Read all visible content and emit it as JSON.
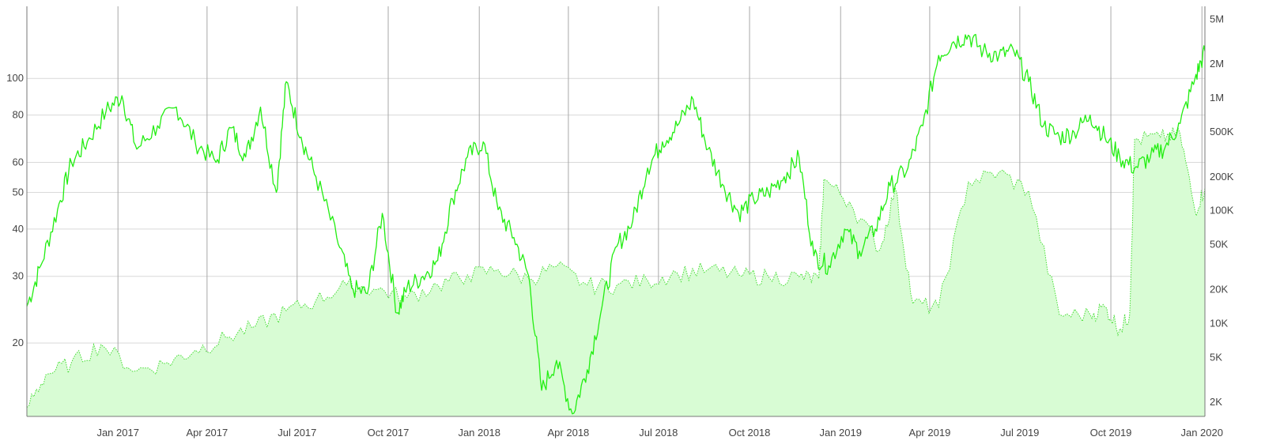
{
  "chart_data": {
    "type": "line",
    "title": "",
    "x_range": [
      "2016-10-01",
      "2020-01-04"
    ],
    "x_ticks": [
      {
        "date": "2017-01-01",
        "label": "Jan 2017"
      },
      {
        "date": "2017-04-01",
        "label": "Apr 2017"
      },
      {
        "date": "2017-07-01",
        "label": "Jul 2017"
      },
      {
        "date": "2017-10-01",
        "label": "Oct 2017"
      },
      {
        "date": "2018-01-01",
        "label": "Jan 2018"
      },
      {
        "date": "2018-04-01",
        "label": "Apr 2018"
      },
      {
        "date": "2018-07-01",
        "label": "Jul 2018"
      },
      {
        "date": "2018-10-01",
        "label": "Oct 2018"
      },
      {
        "date": "2019-01-01",
        "label": "Jan 2019"
      },
      {
        "date": "2019-04-01",
        "label": "Apr 2019"
      },
      {
        "date": "2019-07-01",
        "label": "Jul 2019"
      },
      {
        "date": "2019-10-01",
        "label": "Oct 2019"
      },
      {
        "date": "2020-01-01",
        "label": "Jan 2020"
      }
    ],
    "y_left": {
      "scale": "log",
      "range": [
        12.8,
        155
      ],
      "ticks": [
        {
          "value": 20,
          "label": "20"
        },
        {
          "value": 30,
          "label": "30"
        },
        {
          "value": 40,
          "label": "40"
        },
        {
          "value": 50,
          "label": "50"
        },
        {
          "value": 60,
          "label": "60"
        },
        {
          "value": 80,
          "label": "80"
        },
        {
          "value": 100,
          "label": "100"
        }
      ]
    },
    "y_right": {
      "scale": "log",
      "range": [
        1500,
        6500000
      ],
      "ticks": [
        {
          "value": 2000,
          "label": "2K"
        },
        {
          "value": 5000,
          "label": "5K"
        },
        {
          "value": 10000,
          "label": "10K"
        },
        {
          "value": 20000,
          "label": "20K"
        },
        {
          "value": 50000,
          "label": "50K"
        },
        {
          "value": 100000,
          "label": "100K"
        },
        {
          "value": 200000,
          "label": "200K"
        },
        {
          "value": 500000,
          "label": "500K"
        },
        {
          "value": 1000000,
          "label": "1M"
        },
        {
          "value": 2000000,
          "label": "2M"
        },
        {
          "value": 5000000,
          "label": "5M"
        }
      ]
    },
    "grid": true,
    "series": [
      {
        "axis": "left",
        "style": "solid-line",
        "color": "#22ee11",
        "points": [
          [
            "2016-10-01",
            25
          ],
          [
            "2016-10-15",
            32
          ],
          [
            "2016-11-01",
            45
          ],
          [
            "2016-11-15",
            60
          ],
          [
            "2016-12-01",
            68
          ],
          [
            "2016-12-20",
            82
          ],
          [
            "2017-01-05",
            90
          ],
          [
            "2017-01-20",
            65
          ],
          [
            "2017-02-10",
            75
          ],
          [
            "2017-03-01",
            84
          ],
          [
            "2017-03-20",
            68
          ],
          [
            "2017-04-10",
            60
          ],
          [
            "2017-04-25",
            74
          ],
          [
            "2017-05-10",
            62
          ],
          [
            "2017-05-25",
            84
          ],
          [
            "2017-06-10",
            50
          ],
          [
            "2017-06-20",
            98
          ],
          [
            "2017-07-05",
            70
          ],
          [
            "2017-07-20",
            55
          ],
          [
            "2017-08-10",
            38
          ],
          [
            "2017-08-25",
            28
          ],
          [
            "2017-09-10",
            27
          ],
          [
            "2017-09-25",
            44
          ],
          [
            "2017-10-10",
            24
          ],
          [
            "2017-10-20",
            28
          ],
          [
            "2017-11-05",
            30
          ],
          [
            "2017-11-20",
            33
          ],
          [
            "2017-12-05",
            48
          ],
          [
            "2017-12-20",
            62
          ],
          [
            "2018-01-05",
            68
          ],
          [
            "2018-01-20",
            45
          ],
          [
            "2018-02-05",
            38
          ],
          [
            "2018-02-20",
            30
          ],
          [
            "2018-03-05",
            15
          ],
          [
            "2018-03-20",
            18
          ],
          [
            "2018-04-05",
            13
          ],
          [
            "2018-04-20",
            17
          ],
          [
            "2018-05-05",
            25
          ],
          [
            "2018-05-20",
            36
          ],
          [
            "2018-06-05",
            42
          ],
          [
            "2018-06-20",
            58
          ],
          [
            "2018-07-05",
            68
          ],
          [
            "2018-07-20",
            75
          ],
          [
            "2018-08-05",
            88
          ],
          [
            "2018-08-20",
            65
          ],
          [
            "2018-09-05",
            52
          ],
          [
            "2018-09-20",
            44
          ],
          [
            "2018-10-05",
            48
          ],
          [
            "2018-10-20",
            50
          ],
          [
            "2018-11-05",
            55
          ],
          [
            "2018-11-20",
            62
          ],
          [
            "2018-12-05",
            34
          ],
          [
            "2018-12-20",
            32
          ],
          [
            "2019-01-05",
            40
          ],
          [
            "2019-01-20",
            35
          ],
          [
            "2019-02-05",
            40
          ],
          [
            "2019-02-20",
            52
          ],
          [
            "2019-03-10",
            58
          ],
          [
            "2019-03-25",
            75
          ],
          [
            "2019-04-10",
            115
          ],
          [
            "2019-04-25",
            125
          ],
          [
            "2019-05-10",
            130
          ],
          [
            "2019-05-25",
            118
          ],
          [
            "2019-06-10",
            115
          ],
          [
            "2019-06-25",
            118
          ],
          [
            "2019-07-10",
            98
          ],
          [
            "2019-07-25",
            75
          ],
          [
            "2019-08-10",
            70
          ],
          [
            "2019-08-25",
            72
          ],
          [
            "2019-09-10",
            80
          ],
          [
            "2019-09-25",
            70
          ],
          [
            "2019-10-10",
            62
          ],
          [
            "2019-10-25",
            58
          ],
          [
            "2019-11-10",
            62
          ],
          [
            "2019-11-25",
            66
          ],
          [
            "2019-12-10",
            76
          ],
          [
            "2019-12-25",
            100
          ],
          [
            "2020-01-04",
            118
          ]
        ]
      },
      {
        "axis": "right",
        "style": "dotted-line-area",
        "color": "#44dd33",
        "fill": "#d8fcd4",
        "points": [
          [
            "2016-10-01",
            1800
          ],
          [
            "2016-10-20",
            3500
          ],
          [
            "2016-11-15",
            4500
          ],
          [
            "2016-12-15",
            6500
          ],
          [
            "2017-01-20",
            3800
          ],
          [
            "2017-02-20",
            4500
          ],
          [
            "2017-03-20",
            5800
          ],
          [
            "2017-04-20",
            7500
          ],
          [
            "2017-05-20",
            9500
          ],
          [
            "2017-06-20",
            13000
          ],
          [
            "2017-07-20",
            16000
          ],
          [
            "2017-08-20",
            22000
          ],
          [
            "2017-09-20",
            20000
          ],
          [
            "2017-10-20",
            17000
          ],
          [
            "2017-11-20",
            22000
          ],
          [
            "2017-12-20",
            27000
          ],
          [
            "2018-01-20",
            30000
          ],
          [
            "2018-02-20",
            25000
          ],
          [
            "2018-03-20",
            32000
          ],
          [
            "2018-04-20",
            22000
          ],
          [
            "2018-05-20",
            22000
          ],
          [
            "2018-06-20",
            24000
          ],
          [
            "2018-07-20",
            28000
          ],
          [
            "2018-08-20",
            30000
          ],
          [
            "2018-09-20",
            27000
          ],
          [
            "2018-10-20",
            26000
          ],
          [
            "2018-11-20",
            26000
          ],
          [
            "2018-12-10",
            25000
          ],
          [
            "2018-12-15",
            190000
          ],
          [
            "2019-01-10",
            120000
          ],
          [
            "2019-02-10",
            45000
          ],
          [
            "2019-02-25",
            160000
          ],
          [
            "2019-03-15",
            15000
          ],
          [
            "2019-04-10",
            14000
          ],
          [
            "2019-05-10",
            180000
          ],
          [
            "2019-06-10",
            220000
          ],
          [
            "2019-07-10",
            150000
          ],
          [
            "2019-08-10",
            12000
          ],
          [
            "2019-09-10",
            12000
          ],
          [
            "2019-09-25",
            14000
          ],
          [
            "2019-10-10",
            9000
          ],
          [
            "2019-10-20",
            12000
          ],
          [
            "2019-10-25",
            430000
          ],
          [
            "2019-11-20",
            450000
          ],
          [
            "2019-12-10",
            480000
          ],
          [
            "2019-12-25",
            100000
          ],
          [
            "2020-01-04",
            160000
          ]
        ]
      }
    ]
  }
}
